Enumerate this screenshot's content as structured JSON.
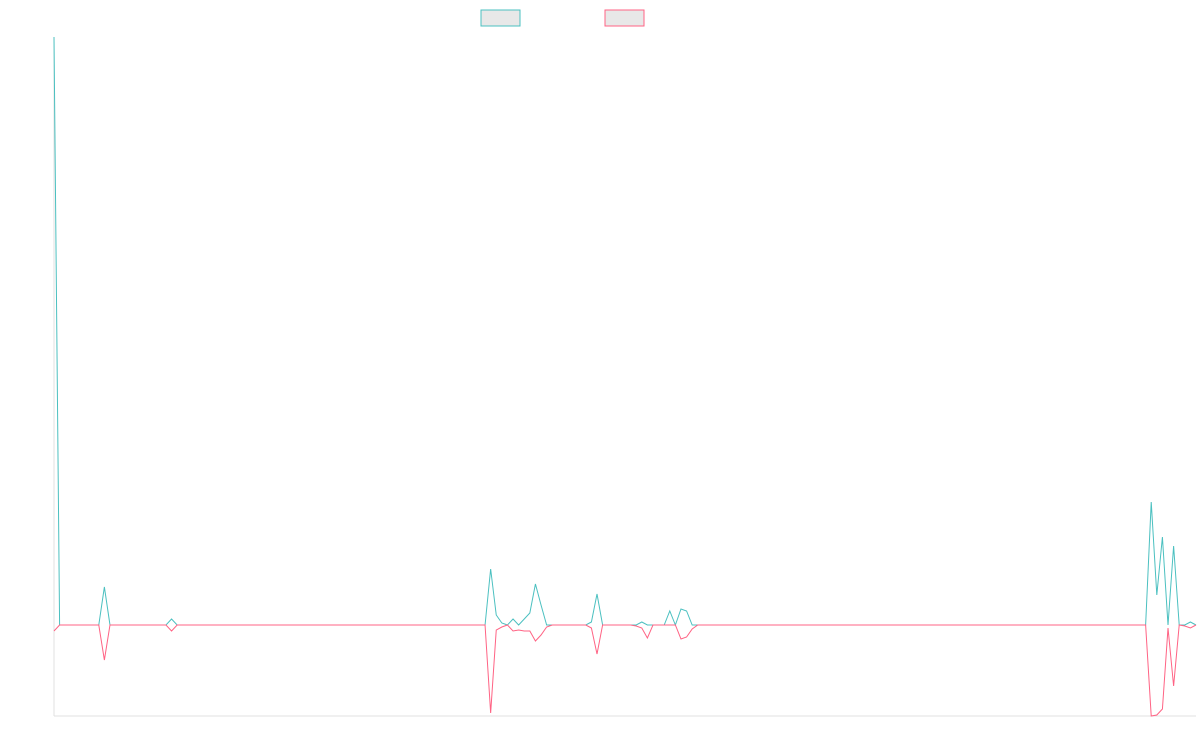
{
  "chart_data": {
    "type": "line",
    "ylim": [
      -91,
      588
    ],
    "series": [
      {
        "color": "#4bc0c0",
        "values": [
          588,
          0,
          0,
          0,
          0,
          0,
          0,
          0,
          0,
          38,
          0,
          0,
          0,
          0,
          0,
          0,
          0,
          0,
          0,
          0,
          0,
          6,
          0,
          0,
          0,
          0,
          0,
          0,
          0,
          0,
          0,
          0,
          0,
          0,
          0,
          0,
          0,
          0,
          0,
          0,
          0,
          0,
          0,
          0,
          0,
          0,
          0,
          0,
          0,
          0,
          0,
          0,
          0,
          0,
          0,
          0,
          0,
          0,
          0,
          0,
          0,
          0,
          0,
          0,
          0,
          0,
          0,
          0,
          0,
          0,
          0,
          0,
          0,
          0,
          0,
          0,
          0,
          0,
          56,
          10,
          2,
          0,
          6,
          0,
          6,
          12,
          41,
          20,
          0,
          0,
          0,
          0,
          0,
          0,
          0,
          0,
          3,
          31,
          0,
          0,
          0,
          0,
          0,
          0,
          0,
          3,
          0,
          0,
          0,
          0,
          14,
          0,
          16,
          14,
          0,
          0,
          0,
          0,
          0,
          0,
          0,
          0,
          0,
          0,
          0,
          0,
          0,
          0,
          0,
          0,
          0,
          0,
          0,
          0,
          0,
          0,
          0,
          0,
          0,
          0,
          0,
          0,
          0,
          0,
          0,
          0,
          0,
          0,
          0,
          0,
          0,
          0,
          0,
          0,
          0,
          0,
          0,
          0,
          0,
          0,
          0,
          0,
          0,
          0,
          0,
          0,
          0,
          0,
          0,
          0,
          0,
          0,
          0,
          0,
          0,
          0,
          0,
          0,
          0,
          0,
          0,
          0,
          0,
          0,
          0,
          0,
          0,
          0,
          0,
          0,
          0,
          0,
          0,
          0,
          0,
          0,
          123,
          30,
          88,
          0,
          79,
          0,
          0,
          3,
          0
        ]
      },
      {
        "color": "#ff6384",
        "values": [
          -6,
          0,
          0,
          0,
          0,
          0,
          0,
          0,
          0,
          -35,
          0,
          0,
          0,
          0,
          0,
          0,
          0,
          0,
          0,
          0,
          0,
          -6,
          0,
          0,
          0,
          0,
          0,
          0,
          0,
          0,
          0,
          0,
          0,
          0,
          0,
          0,
          0,
          0,
          0,
          0,
          0,
          0,
          0,
          0,
          0,
          0,
          0,
          0,
          0,
          0,
          0,
          0,
          0,
          0,
          0,
          0,
          0,
          0,
          0,
          0,
          0,
          0,
          0,
          0,
          0,
          0,
          0,
          0,
          0,
          0,
          0,
          0,
          0,
          0,
          0,
          0,
          0,
          0,
          -88,
          -5,
          -2,
          0,
          -6,
          -5,
          -6,
          -6,
          -16,
          -10,
          -2,
          0,
          0,
          0,
          0,
          0,
          0,
          0,
          -3,
          -29,
          0,
          0,
          0,
          0,
          0,
          0,
          -1,
          -3,
          -13,
          0,
          0,
          0,
          0,
          0,
          -14,
          -12,
          -4,
          0,
          0,
          0,
          0,
          0,
          0,
          0,
          0,
          0,
          0,
          0,
          0,
          0,
          0,
          0,
          0,
          0,
          0,
          0,
          0,
          0,
          0,
          0,
          0,
          0,
          0,
          0,
          0,
          0,
          0,
          0,
          0,
          0,
          0,
          0,
          0,
          0,
          0,
          0,
          0,
          0,
          0,
          0,
          0,
          0,
          0,
          0,
          0,
          0,
          0,
          0,
          0,
          0,
          0,
          0,
          0,
          0,
          0,
          0,
          0,
          0,
          0,
          0,
          0,
          0,
          0,
          0,
          0,
          0,
          0,
          0,
          0,
          0,
          0,
          0,
          0,
          0,
          0,
          0,
          0,
          0,
          -91,
          -90,
          -84,
          -3,
          -61,
          0,
          -1,
          -3,
          0
        ]
      }
    ]
  }
}
